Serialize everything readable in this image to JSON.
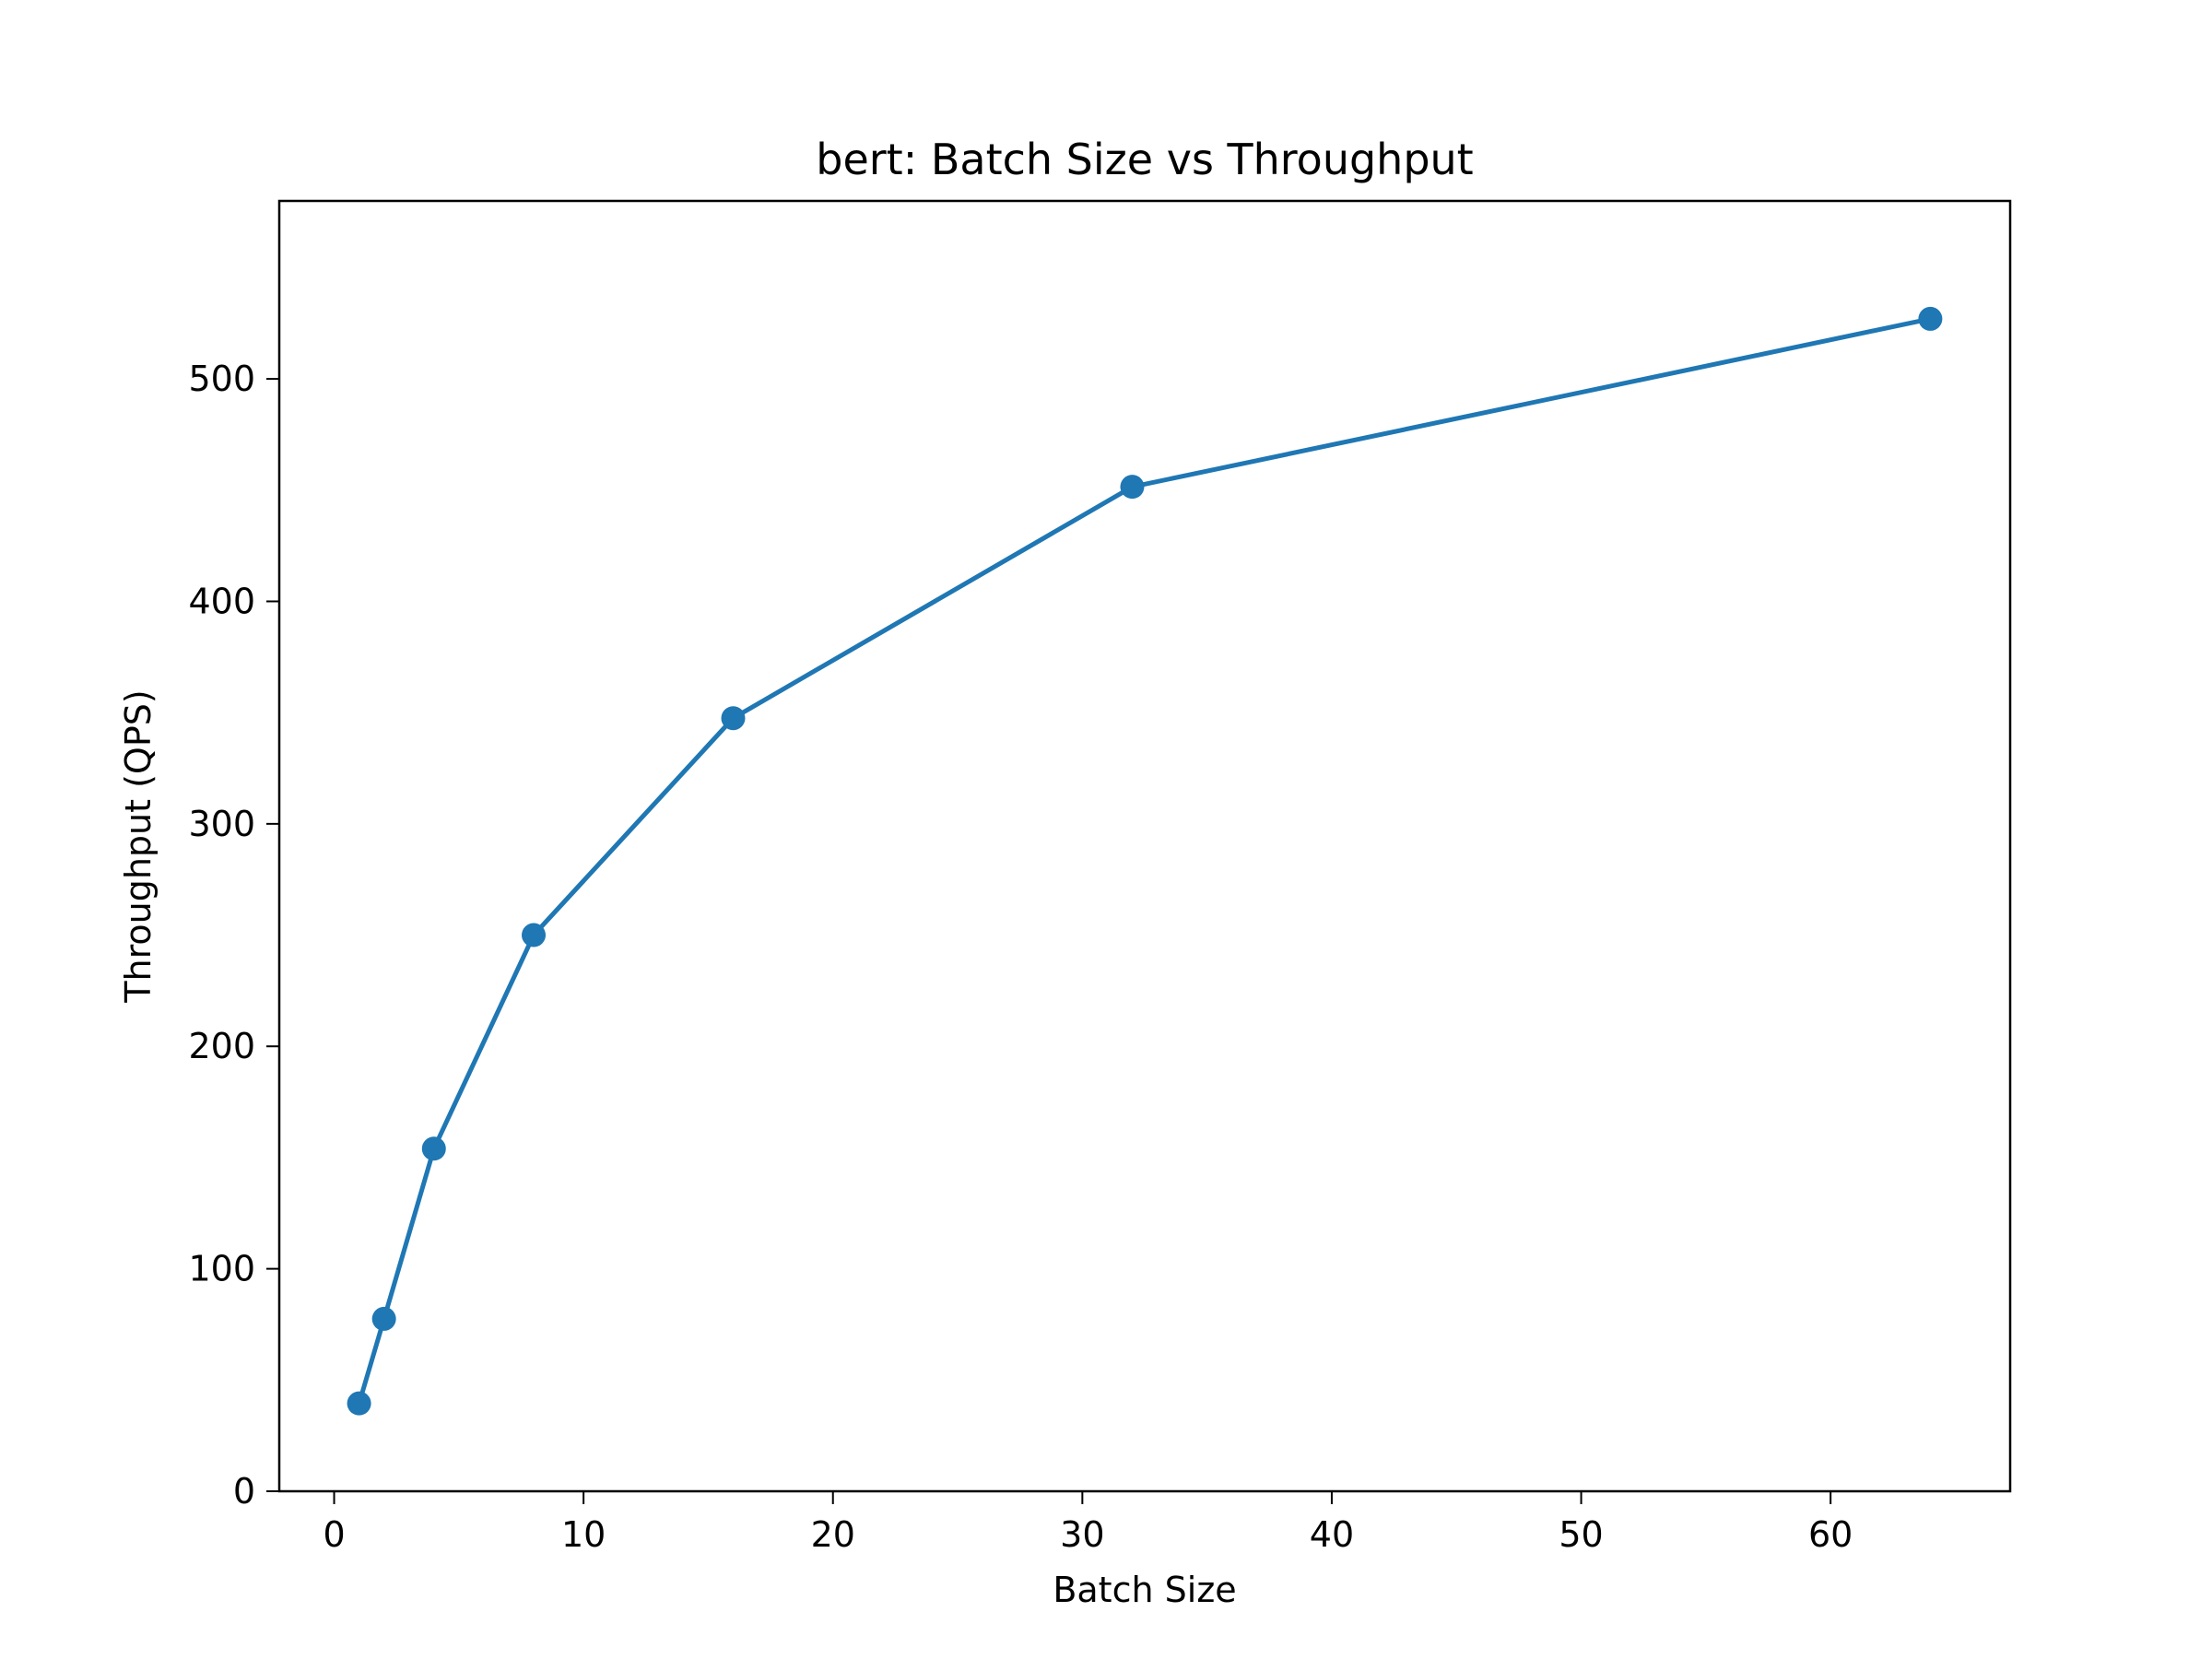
{
  "chart_data": {
    "type": "line",
    "title": "bert: Batch Size vs Throughput",
    "xlabel": "Batch Size",
    "ylabel": "Throughput (QPS)",
    "xlim": [
      -2.2,
      67.2
    ],
    "ylim": [
      0,
      580
    ],
    "xticks": [
      0,
      10,
      20,
      30,
      40,
      50,
      60
    ],
    "yticks": [
      0,
      100,
      200,
      300,
      400,
      500
    ],
    "grid": false,
    "series": [
      {
        "x": [
          1,
          2,
          4,
          8,
          16,
          32,
          64
        ],
        "y": [
          39.5,
          77.5,
          154,
          250,
          347.5,
          451.5,
          527
        ],
        "color": "#1f77b4",
        "marker": "circle"
      }
    ]
  }
}
